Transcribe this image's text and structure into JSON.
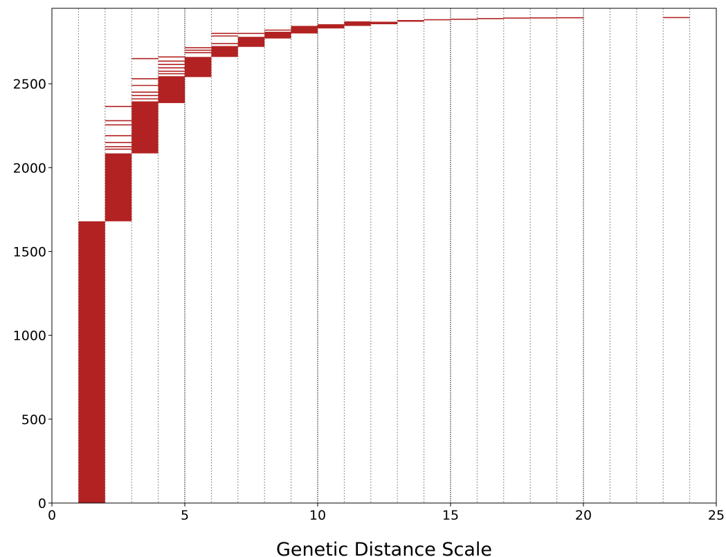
{
  "chart_data": {
    "type": "bar",
    "xlabel": "Genetic Distance Scale",
    "ylabel": "",
    "title": "",
    "xlim": [
      0,
      25
    ],
    "ylim": [
      0,
      2950
    ],
    "x_ticks": [
      0,
      5,
      10,
      15,
      20,
      25
    ],
    "y_ticks": [
      0,
      500,
      1000,
      1500,
      2000,
      2500
    ],
    "grid": {
      "x_minor_every": 1,
      "x_major_every": 5,
      "style": "dotted",
      "y_grid": false
    },
    "bar_color": "#b22222",
    "bins": [
      {
        "x_start": 1,
        "x_end": 2,
        "y_bottom": 0,
        "y_top": 1680,
        "stray_lines": []
      },
      {
        "x_start": 2,
        "x_end": 3,
        "y_bottom": 1680,
        "y_top": 2085,
        "stray_lines": [
          2110,
          2125,
          2150,
          2190,
          2255,
          2280,
          2365
        ]
      },
      {
        "x_start": 3,
        "x_end": 4,
        "y_bottom": 2085,
        "y_top": 2395,
        "stray_lines": [
          2410,
          2430,
          2450,
          2490,
          2530,
          2650
        ]
      },
      {
        "x_start": 4,
        "x_end": 5,
        "y_bottom": 2385,
        "y_top": 2545,
        "stray_lines": [
          2560,
          2575,
          2595,
          2615,
          2635,
          2660
        ]
      },
      {
        "x_start": 5,
        "x_end": 6,
        "y_bottom": 2540,
        "y_top": 2660,
        "stray_lines": [
          2685,
          2700,
          2715
        ]
      },
      {
        "x_start": 6,
        "x_end": 7,
        "y_bottom": 2660,
        "y_top": 2725,
        "stray_lines": [
          2740,
          2785,
          2800
        ]
      },
      {
        "x_start": 7,
        "x_end": 8,
        "y_bottom": 2720,
        "y_top": 2780,
        "stray_lines": [
          2800
        ]
      },
      {
        "x_start": 8,
        "x_end": 9,
        "y_bottom": 2770,
        "y_top": 2810,
        "stray_lines": [
          2820
        ]
      },
      {
        "x_start": 9,
        "x_end": 10,
        "y_bottom": 2800,
        "y_top": 2845,
        "stray_lines": []
      },
      {
        "x_start": 10,
        "x_end": 11,
        "y_bottom": 2830,
        "y_top": 2855,
        "stray_lines": []
      },
      {
        "x_start": 11,
        "x_end": 12,
        "y_bottom": 2845,
        "y_top": 2872,
        "stray_lines": []
      },
      {
        "x_start": 12,
        "x_end": 13,
        "y_bottom": 2855,
        "y_top": 2870,
        "stray_lines": []
      },
      {
        "x_start": 13,
        "x_end": 14,
        "y_bottom": 2870,
        "y_top": 2880,
        "stray_lines": []
      },
      {
        "x_start": 14,
        "x_end": 15,
        "y_bottom": 2880,
        "y_top": 2885,
        "stray_lines": []
      },
      {
        "x_start": 15,
        "x_end": 16,
        "y_bottom": 2885,
        "y_top": 2888,
        "stray_lines": []
      },
      {
        "x_start": 16,
        "x_end": 17,
        "y_bottom": 2888,
        "y_top": 2892,
        "stray_lines": []
      },
      {
        "x_start": 17,
        "x_end": 18,
        "y_bottom": 2892,
        "y_top": 2895,
        "stray_lines": []
      },
      {
        "x_start": 18,
        "x_end": 19,
        "y_bottom": 2894,
        "y_top": 2896,
        "stray_lines": []
      },
      {
        "x_start": 19,
        "x_end": 20,
        "y_bottom": 2896,
        "y_top": 2897,
        "stray_lines": []
      },
      {
        "x_start": 23,
        "x_end": 24,
        "y_bottom": 2897,
        "y_top": 2898,
        "stray_lines": []
      }
    ]
  }
}
